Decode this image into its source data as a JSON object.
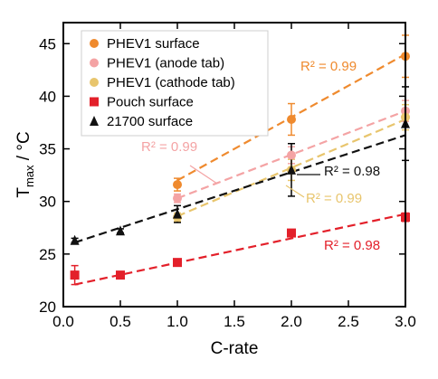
{
  "chart_data": {
    "type": "scatter",
    "xlabel": "C-rate",
    "ylabel_main": "T",
    "ylabel_sub": "max",
    "ylabel_unit": " / °C",
    "xlim": [
      0.0,
      3.0
    ],
    "ylim": [
      20,
      47
    ],
    "x_ticks": [
      0.0,
      0.5,
      1.0,
      1.5,
      2.0,
      2.5,
      3.0
    ],
    "x_tick_labels": [
      "0.0",
      "0.5",
      "1.0",
      "1.5",
      "2.0",
      "2.5",
      "3.0"
    ],
    "y_ticks": [
      20,
      25,
      30,
      35,
      40,
      45
    ],
    "y_tick_labels": [
      "20",
      "25",
      "30",
      "35",
      "40",
      "45"
    ],
    "legend_position": "top-left",
    "series": [
      {
        "name": "PHEV1 surface",
        "color": "#ef8a2e",
        "marker": "circle",
        "x": [
          1.0,
          2.0,
          3.0
        ],
        "y": [
          31.6,
          37.8,
          43.8
        ],
        "err": [
          0.6,
          1.5,
          2.0
        ],
        "fit_x": [
          1.0,
          3.0
        ],
        "fit_y": [
          32.0,
          44.0
        ],
        "r2": "R² = 0.99"
      },
      {
        "name": "PHEV1 (anode tab)",
        "color": "#f4a3a4",
        "marker": "circle",
        "x": [
          1.0,
          2.0,
          3.0
        ],
        "y": [
          30.3,
          34.4,
          38.6
        ],
        "err": [
          0.4,
          0.8,
          1.0
        ],
        "fit_x": [
          1.0,
          3.0
        ],
        "fit_y": [
          30.3,
          38.6
        ],
        "r2": "R² = 0.99"
      },
      {
        "name": "PHEV1 (cathode tab)",
        "color": "#e8c56d",
        "marker": "circle",
        "x": [
          1.0,
          2.0,
          3.0
        ],
        "y": [
          28.5,
          33.0,
          38.0
        ],
        "err": [
          0.4,
          1.0,
          1.2
        ],
        "fit_x": [
          1.0,
          3.0
        ],
        "fit_y": [
          28.6,
          37.8
        ],
        "r2": "R² = 0.99"
      },
      {
        "name": "Pouch surface",
        "color": "#e3202a",
        "marker": "square",
        "x": [
          0.1,
          0.5,
          1.0,
          2.0,
          3.0
        ],
        "y": [
          23.0,
          23.0,
          24.2,
          27.0,
          28.5
        ],
        "err": [
          0.9,
          0.3,
          0.3,
          0.3,
          0.4
        ],
        "fit_x": [
          0.1,
          3.0
        ],
        "fit_y": [
          22.1,
          28.8
        ],
        "r2": "R² = 0.98"
      },
      {
        "name": "21700 surface",
        "color": "#111111",
        "marker": "triangle",
        "x": [
          0.1,
          0.5,
          1.0,
          2.0,
          3.0
        ],
        "y": [
          26.3,
          27.2,
          28.8,
          33.0,
          37.4
        ],
        "err": [
          0.2,
          0.2,
          0.8,
          2.5,
          3.5
        ],
        "fit_x": [
          0.1,
          3.0
        ],
        "fit_y": [
          26.1,
          36.3
        ],
        "r2": "R² = 0.98"
      }
    ]
  }
}
